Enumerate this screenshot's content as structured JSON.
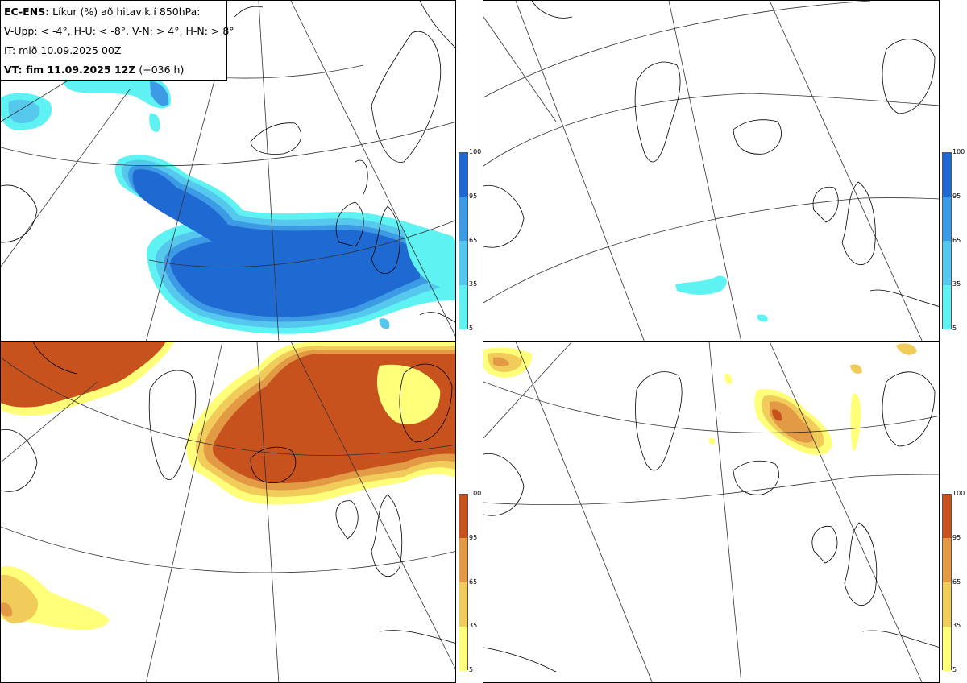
{
  "header": {
    "line1_bold": "EC-ENS:",
    "line1_rest": " Líkur (%) að hitavik í 850hPa:",
    "line2": "V-Upp: < -4°, H-U: < -8°, V-N: > 4°, H-N: > 8°",
    "line3": "IT: mið 10.09.2025 00Z",
    "line4_bold": "VT: fim 11.09.2025 12Z",
    "line4_rest": " (+036 h)"
  },
  "colorbar_ticks": [
    "100",
    "95",
    "65",
    "35",
    "5"
  ],
  "colors": {
    "blue_scale": [
      "#5ef2f2",
      "#56c8ee",
      "#3d9ae4",
      "#1f6ad2"
    ],
    "orange_scale": [
      "#ffff7a",
      "#f2cc5a",
      "#e29a44",
      "#c8521e"
    ],
    "coast": "#000000",
    "grid": "#333333"
  },
  "panels": [
    {
      "id": "v-upp",
      "scale": "blue"
    },
    {
      "id": "h-u",
      "scale": "blue"
    },
    {
      "id": "v-n",
      "scale": "orange"
    },
    {
      "id": "h-n",
      "scale": "orange"
    }
  ]
}
